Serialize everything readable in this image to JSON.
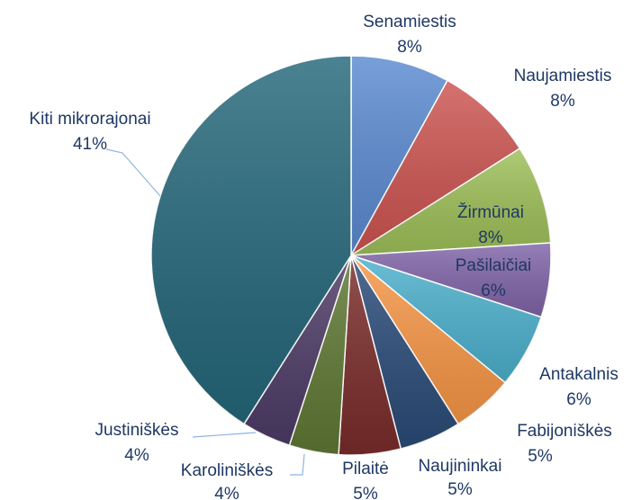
{
  "chart_data": {
    "type": "pie",
    "categories": [
      "Senamiestis",
      "Naujamiestis",
      "Žirmūnai",
      "Pašilaičiai",
      "Antakalnis",
      "Fabijoniškės",
      "Naujininkai",
      "Pilaitė",
      "Karoliniškės",
      "Justiniškės",
      "Kiti mikrorajonai"
    ],
    "values": [
      8,
      8,
      8,
      6,
      6,
      5,
      5,
      5,
      4,
      4,
      41
    ],
    "value_labels": [
      "8%",
      "8%",
      "8%",
      "6%",
      "6%",
      "5%",
      "5%",
      "5%",
      "4%",
      "4%",
      "41%"
    ],
    "colors": [
      "#5a8ad0",
      "#cc5450",
      "#9dbf58",
      "#8064a8",
      "#4bb0cc",
      "#f79646",
      "#2a4b78",
      "#7a2c2a",
      "#5f7833",
      "#4d3b66",
      "#24677a"
    ]
  }
}
